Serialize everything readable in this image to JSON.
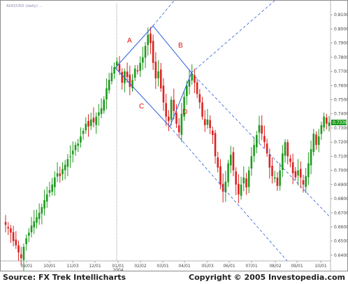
{
  "chart_data": {
    "type": "candlestick",
    "symbol_label": "AUD/USD (daily) ...",
    "ylim": [
      0.636,
      0.818
    ],
    "y_ticks": [
      "0.8100",
      "0.8000",
      "0.7900",
      "0.7800",
      "0.7700",
      "0.7600",
      "0.7500",
      "0.7400",
      "0.7300",
      "0.7200",
      "0.7100",
      "0.7000",
      "0.6900",
      "0.6800",
      "0.6700",
      "0.6600",
      "0.6500",
      "0.6400"
    ],
    "y_tick_values": [
      0.81,
      0.8,
      0.79,
      0.78,
      0.77,
      0.76,
      0.75,
      0.74,
      0.73,
      0.72,
      0.71,
      0.7,
      0.69,
      0.68,
      0.67,
      0.66,
      0.65,
      0.64
    ],
    "last_price": {
      "label": "0.7339",
      "value": 0.7339
    },
    "x_ticks": [
      "09/01",
      "10/01",
      "11/03",
      "12/01",
      "01/01",
      "02/02",
      "03/01",
      "04/01",
      "05/03",
      "06/01",
      "07/01",
      "08/02",
      "09/01",
      "10/01"
    ],
    "x_year_label": "2004",
    "up_color": "#1e9b1e",
    "down_color": "#dd2222",
    "line_color": "#2b5fd9",
    "closes": [
      0.6615,
      0.659,
      0.656,
      0.65,
      0.647,
      0.642,
      0.638,
      0.646,
      0.652,
      0.656,
      0.661,
      0.664,
      0.667,
      0.67,
      0.674,
      0.679,
      0.683,
      0.686,
      0.69,
      0.695,
      0.698,
      0.696,
      0.701,
      0.704,
      0.708,
      0.71,
      0.714,
      0.718,
      0.719,
      0.724,
      0.728,
      0.733,
      0.731,
      0.736,
      0.734,
      0.738,
      0.741,
      0.744,
      0.75,
      0.758,
      0.764,
      0.769,
      0.773,
      0.777,
      0.77,
      0.762,
      0.77,
      0.766,
      0.759,
      0.764,
      0.772,
      0.77,
      0.776,
      0.78,
      0.788,
      0.796,
      0.79,
      0.776,
      0.765,
      0.77,
      0.758,
      0.748,
      0.738,
      0.735,
      0.75,
      0.742,
      0.733,
      0.727,
      0.74,
      0.752,
      0.76,
      0.764,
      0.768,
      0.762,
      0.754,
      0.748,
      0.738,
      0.732,
      0.736,
      0.73,
      0.725,
      0.71,
      0.702,
      0.69,
      0.685,
      0.692,
      0.705,
      0.711,
      0.7,
      0.69,
      0.683,
      0.69,
      0.695,
      0.688,
      0.7,
      0.71,
      0.718,
      0.725,
      0.732,
      0.726,
      0.72,
      0.712,
      0.702,
      0.696,
      0.695,
      0.689,
      0.7,
      0.712,
      0.72,
      0.71,
      0.706,
      0.698,
      0.695,
      0.7,
      0.695,
      0.69,
      0.696,
      0.705,
      0.715,
      0.726,
      0.718,
      0.724,
      0.732,
      0.738,
      0.733,
      0.7339
    ],
    "annotations": [
      {
        "text": "A"
      },
      {
        "text": "B"
      },
      {
        "text": "C"
      },
      {
        "text": "D"
      }
    ]
  },
  "footer": {
    "source": "Source: FX Trek Intellicharts",
    "copyright": "Copyright © 2005 Investopedia.com"
  }
}
